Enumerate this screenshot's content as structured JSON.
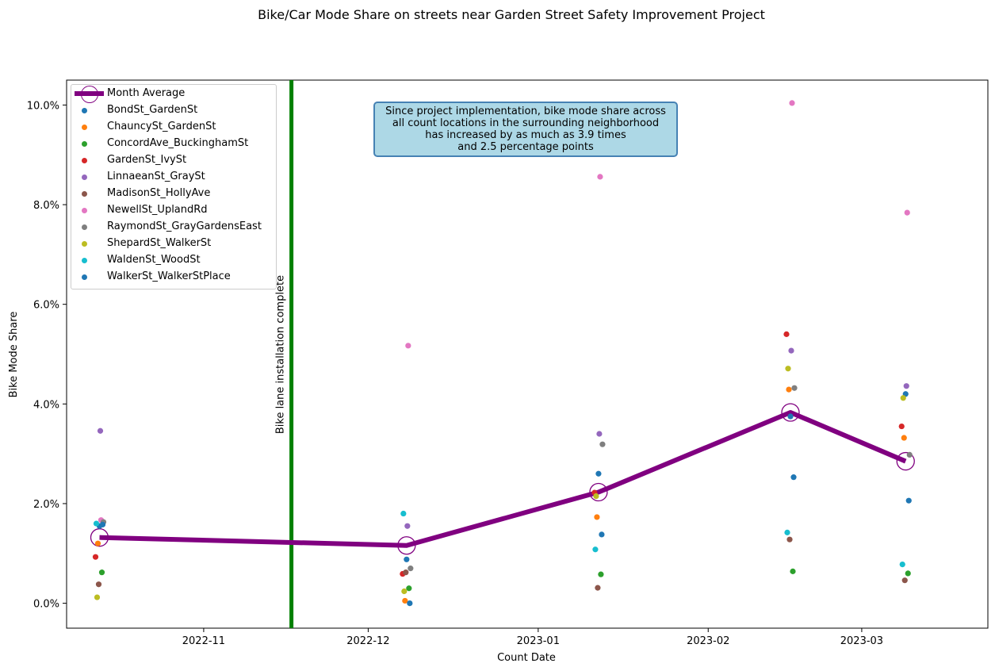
{
  "suptitle": "Bike/Car Mode Share on streets near Garden Street Safety Improvement Project",
  "annotation": {
    "line1": "Since project implementation, bike mode share across",
    "line2": "all count locations in the surrounding neighborhood",
    "line3": "has increased by as much as 3.9 times",
    "line4": "and 2.5 percentage points"
  },
  "vline_label": "Bike lane installation complete",
  "colors": {
    "average": "#800080",
    "vline": "#008000",
    "annotation_bg": "#add8e6",
    "annotation_border": "#4682b4"
  },
  "chart_data": {
    "type": "scatter",
    "title": "Bike/Car Mode Share on streets near Garden Street Safety Improvement Project",
    "xlabel": "Count Date",
    "ylabel": "Bike Mode Share",
    "x_ticks": [
      "2022-11",
      "2022-12",
      "2023-01",
      "2023-02",
      "2023-03"
    ],
    "y_ticks": [
      "0.0%",
      "2.0%",
      "4.0%",
      "6.0%",
      "8.0%",
      "10.0%"
    ],
    "ylim": [
      -0.5,
      10.5
    ],
    "xlim": [
      "2022-10-07",
      "2023-03-24"
    ],
    "grid": false,
    "legend_position": "upper left",
    "vline_date": "2022-11-17",
    "dates": [
      "2022-10-13",
      "2022-12-08",
      "2023-01-12",
      "2023-02-16",
      "2023-03-09"
    ],
    "average": {
      "name": "Month Average",
      "values": [
        1.32,
        1.16,
        2.23,
        3.83,
        2.85
      ]
    },
    "series": [
      {
        "name": "BondSt_GardenSt",
        "color": "#1f77b4",
        "values": [
          1.55,
          0.88,
          2.6,
          3.75,
          4.2
        ]
      },
      {
        "name": "ChauncySt_GardenSt",
        "color": "#ff7f0e",
        "values": [
          1.2,
          0.05,
          1.73,
          4.29,
          3.32
        ]
      },
      {
        "name": "ConcordAve_BuckinghamSt",
        "color": "#2ca02c",
        "values": [
          0.62,
          0.3,
          0.58,
          0.64,
          0.6
        ]
      },
      {
        "name": "GardenSt_IvySt",
        "color": "#d62728",
        "values": [
          0.93,
          0.59,
          2.22,
          5.4,
          3.55
        ]
      },
      {
        "name": "LinnaeanSt_GraySt",
        "color": "#9467bd",
        "values": [
          3.46,
          1.55,
          3.4,
          5.07,
          4.36
        ]
      },
      {
        "name": "MadisonSt_HollyAve",
        "color": "#8c564b",
        "values": [
          0.38,
          0.62,
          0.31,
          1.28,
          0.46
        ]
      },
      {
        "name": "NewellSt_UplandRd",
        "color": "#e377c2",
        "values": [
          1.67,
          5.17,
          8.56,
          10.04,
          7.84
        ]
      },
      {
        "name": "RaymondSt_GrayGardensEast",
        "color": "#7f7f7f",
        "values": [
          1.63,
          0.7,
          3.19,
          4.32,
          2.98
        ]
      },
      {
        "name": "ShepardSt_WalkerSt",
        "color": "#bcbd22",
        "values": [
          0.12,
          0.24,
          2.15,
          4.71,
          4.12
        ]
      },
      {
        "name": "WaldenSt_WoodSt",
        "color": "#17becf",
        "values": [
          1.6,
          1.8,
          1.08,
          1.42,
          0.78
        ]
      },
      {
        "name": "WalkerSt_WalkerStPlace",
        "color": "#1f77b4",
        "values": [
          1.58,
          0.0,
          1.38,
          2.53,
          2.06
        ]
      }
    ]
  }
}
